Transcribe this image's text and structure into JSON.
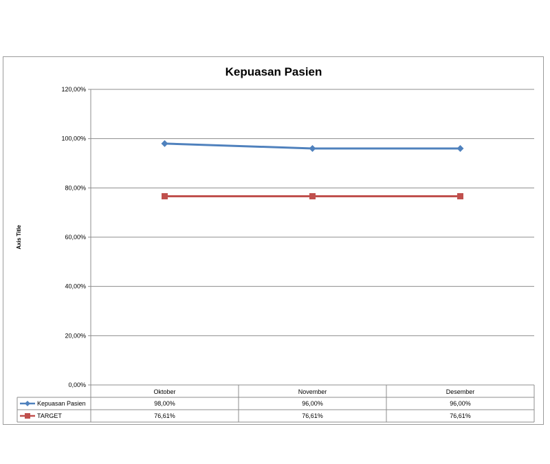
{
  "chart_data": {
    "type": "line",
    "title": "Kepuasan Pasien",
    "ylabel": "Axis Title",
    "xlabel": "",
    "categories": [
      "Oktober",
      "November",
      "Desember"
    ],
    "ylim": [
      0,
      1.2
    ],
    "yticks": [
      {
        "value": 0,
        "label": "0,00%"
      },
      {
        "value": 0.2,
        "label": "20,00%"
      },
      {
        "value": 0.4,
        "label": "40,00%"
      },
      {
        "value": 0.6,
        "label": "60,00%"
      },
      {
        "value": 0.8,
        "label": "80,00%"
      },
      {
        "value": 1.0,
        "label": "100,00%"
      },
      {
        "value": 1.2,
        "label": "120,00%"
      }
    ],
    "grid": true,
    "legend": "data-table",
    "series": [
      {
        "name": "Kepuasan Pasien",
        "values": [
          0.98,
          0.96,
          0.96
        ],
        "labels": [
          "98,00%",
          "96,00%",
          "96,00%"
        ],
        "color": "#4f81bd",
        "marker": "diamond"
      },
      {
        "name": "TARGET",
        "values": [
          0.7661,
          0.7661,
          0.7661
        ],
        "labels": [
          "76,61%",
          "76,61%",
          "76,61%"
        ],
        "color": "#c0504d",
        "marker": "square"
      }
    ]
  }
}
